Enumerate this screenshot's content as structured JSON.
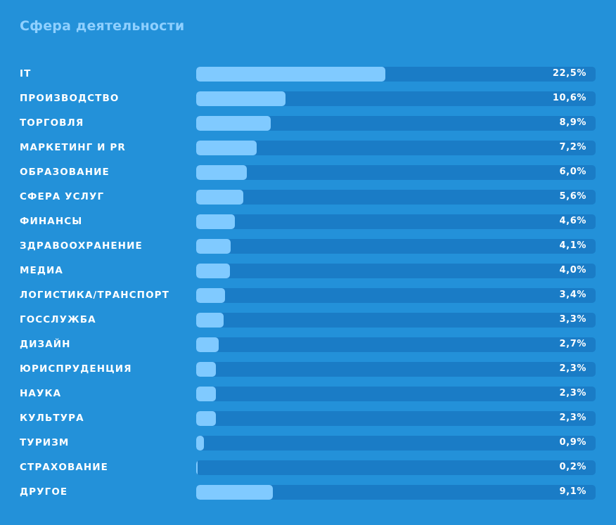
{
  "title": "Сфера деятельности",
  "colors": {
    "background": "#2391d9",
    "track": "#1a7cc6",
    "fill": "#80caff",
    "title": "#8fd0ff",
    "text": "#ffffff"
  },
  "chart_data": {
    "type": "bar",
    "orientation": "horizontal",
    "title": "Сфера деятельности",
    "xlim": [
      0,
      47.5
    ],
    "categories": [
      "IT",
      "ПРОИЗВОДСТВО",
      "ТОРГОВЛЯ",
      "МАРКЕТИНГ И PR",
      "ОБРАЗОВАНИЕ",
      "СФЕРА УСЛУГ",
      "ФИНАНСЫ",
      "ЗДРАВООХРАНЕНИЕ",
      "МЕДИА",
      "ЛОГИСТИКА/ТРАНСПОРТ",
      "ГОССЛУЖБА",
      "ДИЗАЙН",
      "ЮРИСПРУДЕНЦИЯ",
      "НАУКА",
      "КУЛЬТУРА",
      "ТУРИЗМ",
      "СТРАХОВАНИЕ",
      "ДРУГОЕ"
    ],
    "values": [
      22.5,
      10.6,
      8.9,
      7.2,
      6.0,
      5.6,
      4.6,
      4.1,
      4.0,
      3.4,
      3.3,
      2.7,
      2.3,
      2.3,
      2.3,
      0.9,
      0.2,
      9.1
    ],
    "value_labels": [
      "22,5%",
      "10,6%",
      "8,9%",
      "7,2%",
      "6,0%",
      "5,6%",
      "4,6%",
      "4,1%",
      "4,0%",
      "3,4%",
      "3,3%",
      "2,7%",
      "2,3%",
      "2,3%",
      "2,3%",
      "0,9%",
      "0,2%",
      "9,1%"
    ]
  }
}
